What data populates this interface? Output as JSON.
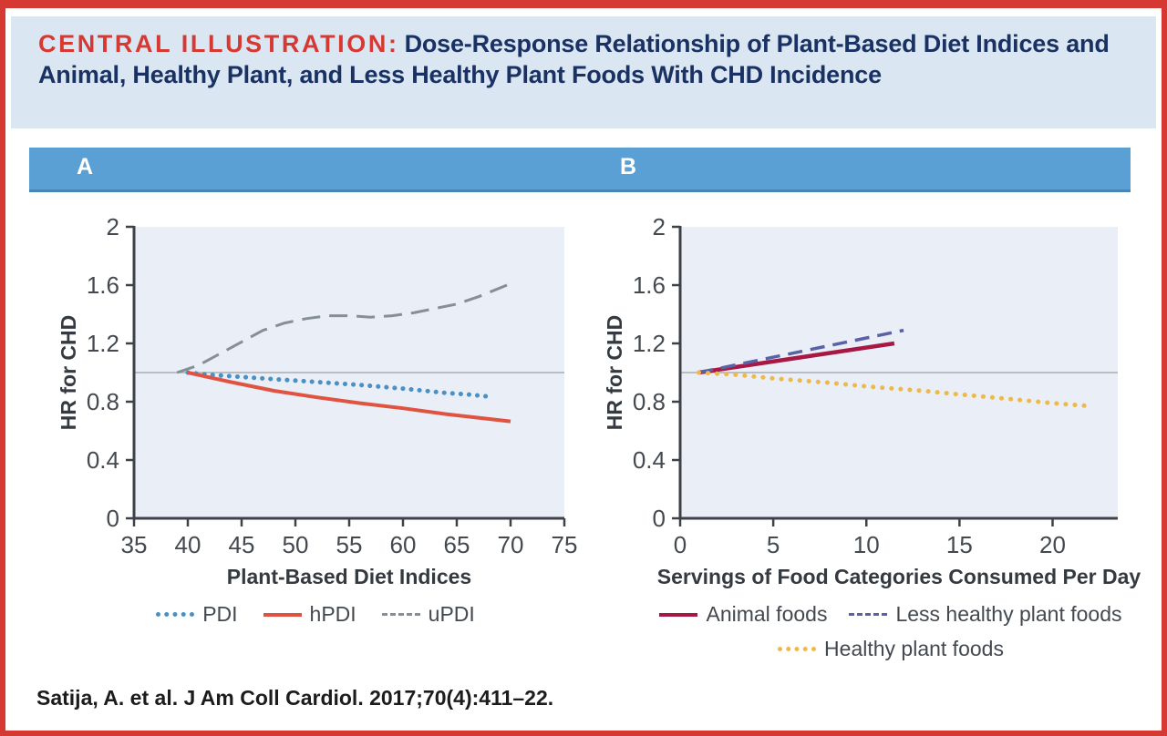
{
  "header": {
    "kicker": "CENTRAL ILLUSTRATION:",
    "title": "Dose-Response Relationship of Plant-Based Diet Indices and Animal, Healthy Plant, and Less Healthy Plant Foods With CHD Incidence"
  },
  "panels": {
    "a_label": "A",
    "b_label": "B"
  },
  "citation": "Satija, A. et al. J Am Coll Cardiol. 2017;70(4):411–22.",
  "colors": {
    "frame_red": "#d63931",
    "title_navy": "#1a3263",
    "header_bg": "#dbe6f3",
    "panel_bar_blue": "#5ba0d4",
    "plot_bg": "#e9eef7",
    "axis": "#3c4248",
    "tick_text": "#43494f",
    "reference_line": "#a8aeb4"
  },
  "chart_data": [
    {
      "panel": "A",
      "type": "line",
      "xlabel": "Plant-Based Diet Indices",
      "ylabel": "HR for CHD",
      "xlim": [
        35,
        75
      ],
      "ylim": [
        0,
        2
      ],
      "xticks": [
        35,
        40,
        45,
        50,
        55,
        60,
        65,
        70,
        75
      ],
      "yticks": [
        0,
        0.4,
        0.8,
        1.2,
        1.6,
        2
      ],
      "grid": false,
      "reference_line_y": 1.0,
      "legend_position": "bottom",
      "series": [
        {
          "name": "PDI",
          "style": "dotted",
          "color": "#4a90c4",
          "width": 5,
          "gap": 9,
          "points": [
            [
              40,
              1.0
            ],
            [
              42,
              0.985
            ],
            [
              45,
              0.97
            ],
            [
              48,
              0.955
            ],
            [
              52,
              0.935
            ],
            [
              56,
              0.915
            ],
            [
              60,
              0.89
            ],
            [
              64,
              0.86
            ],
            [
              66,
              0.85
            ],
            [
              68,
              0.835
            ]
          ]
        },
        {
          "name": "hPDI",
          "style": "solid",
          "color": "#e05340",
          "width": 4,
          "points": [
            [
              40,
              1.0
            ],
            [
              44,
              0.935
            ],
            [
              48,
              0.875
            ],
            [
              52,
              0.83
            ],
            [
              56,
              0.79
            ],
            [
              60,
              0.755
            ],
            [
              64,
              0.715
            ],
            [
              67,
              0.69
            ],
            [
              70,
              0.665
            ]
          ]
        },
        {
          "name": "uPDI",
          "style": "dashed",
          "color": "#878f96",
          "width": 3,
          "dash": "20 10",
          "points": [
            [
              39,
              1.0
            ],
            [
              41,
              1.05
            ],
            [
              43,
              1.13
            ],
            [
              45,
              1.21
            ],
            [
              47,
              1.29
            ],
            [
              49,
              1.34
            ],
            [
              51,
              1.37
            ],
            [
              53,
              1.39
            ],
            [
              55,
              1.39
            ],
            [
              57,
              1.38
            ],
            [
              59,
              1.39
            ],
            [
              61,
              1.41
            ],
            [
              63,
              1.44
            ],
            [
              65,
              1.47
            ],
            [
              67,
              1.52
            ],
            [
              69,
              1.58
            ],
            [
              70,
              1.61
            ]
          ]
        }
      ]
    },
    {
      "panel": "B",
      "type": "line",
      "xlabel": "Servings of Food Categories Consumed Per Day",
      "ylabel": "HR for CHD",
      "xlim": [
        0,
        23.5
      ],
      "ylim": [
        0,
        2
      ],
      "xticks": [
        0,
        5,
        10,
        15,
        20
      ],
      "yticks": [
        0,
        0.4,
        0.8,
        1.2,
        1.6,
        2
      ],
      "grid": false,
      "reference_line_y": 1.0,
      "legend_position": "bottom",
      "series": [
        {
          "name": "Animal foods",
          "style": "solid",
          "color": "#a81844",
          "width": 4.5,
          "points": [
            [
              1,
              1.0
            ],
            [
              11.5,
              1.2
            ]
          ]
        },
        {
          "name": "Less healthy plant foods",
          "style": "dashed",
          "color": "#5a62a5",
          "width": 3.5,
          "dash": "16 9",
          "points": [
            [
              1,
              1.0
            ],
            [
              12,
              1.29
            ]
          ]
        },
        {
          "name": "Healthy plant foods",
          "style": "dotted",
          "color": "#eeb94b",
          "width": 5,
          "gap": 10,
          "points": [
            [
              1,
              1.0
            ],
            [
              3,
              0.985
            ],
            [
              5,
              0.96
            ],
            [
              8,
              0.93
            ],
            [
              10,
              0.905
            ],
            [
              13,
              0.875
            ],
            [
              15,
              0.85
            ],
            [
              18,
              0.815
            ],
            [
              20,
              0.79
            ],
            [
              22,
              0.77
            ]
          ]
        }
      ]
    }
  ]
}
